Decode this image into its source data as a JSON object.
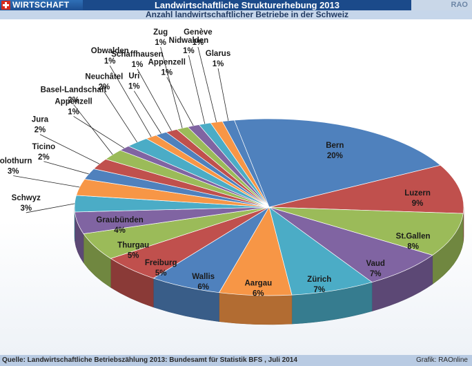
{
  "header": {
    "section": "WIRTSCHAFT",
    "title": "Landwirtschaftliche Strukturerhebung 2013",
    "brand": "RAO",
    "subtitle": "Anzahl landwirtschaftlicher Betriebe in der Schweiz"
  },
  "footer": {
    "source": "Quelle: Landwirtschaftliche Betriebszählung 2013: Bundesamt für Statistik BFS , Juli 2014",
    "credit": "Grafik: RAOnline"
  },
  "chart_data": {
    "type": "pie",
    "title": "Anzahl landwirtschaftlicher Betriebe in der Schweiz",
    "unit": "%",
    "style": "3d-pie",
    "slices": [
      {
        "label": "Bern",
        "value": 20,
        "display": "20%",
        "color": "#4f81bd"
      },
      {
        "label": "Luzern",
        "value": 9,
        "display": "9%",
        "color": "#c0504d"
      },
      {
        "label": "St.Gallen",
        "value": 8,
        "display": "8%",
        "color": "#9bbb59"
      },
      {
        "label": "Vaud",
        "value": 7,
        "display": "7%",
        "color": "#8064a2"
      },
      {
        "label": "Zürich",
        "value": 7,
        "display": "7%",
        "color": "#4bacc6"
      },
      {
        "label": "Aargau",
        "value": 6,
        "display": "6%",
        "color": "#f79646"
      },
      {
        "label": "Wallis",
        "value": 6,
        "display": "6%",
        "color": "#4f81bd"
      },
      {
        "label": "Freiburg",
        "value": 5,
        "display": "5%",
        "color": "#c0504d"
      },
      {
        "label": "Thurgau",
        "value": 5,
        "display": "5%",
        "color": "#9bbb59"
      },
      {
        "label": "Graubünden",
        "value": 4,
        "display": "4%",
        "color": "#8064a2"
      },
      {
        "label": "Schwyz",
        "value": 3,
        "display": "3%",
        "color": "#4bacc6"
      },
      {
        "label": "Solothurn",
        "value": 3,
        "display": "3%",
        "color": "#f79646"
      },
      {
        "label": "Ticino",
        "value": 2,
        "display": "2%",
        "color": "#4f81bd"
      },
      {
        "label": "Jura",
        "value": 2,
        "display": "2%",
        "color": "#c0504d"
      },
      {
        "label": "Basel-Landschaft",
        "value": 2,
        "display": "2%",
        "color": "#9bbb59"
      },
      {
        "label": "Appenzell",
        "value": 1,
        "display": "1%",
        "color": "#8064a2"
      },
      {
        "label": "Neuchâtel",
        "value": 2,
        "display": "2%",
        "color": "#4bacc6"
      },
      {
        "label": "Obwalden",
        "value": 1,
        "display": "1%",
        "color": "#f79646"
      },
      {
        "label": "Uri",
        "value": 1,
        "display": "1%",
        "color": "#4f81bd"
      },
      {
        "label": "Schaffhausen",
        "value": 1,
        "display": "1%",
        "color": "#c0504d"
      },
      {
        "label": "Zug",
        "value": 1,
        "display": "1%",
        "color": "#9bbb59"
      },
      {
        "label": "Appenzell",
        "value": 1,
        "display": "1%",
        "color": "#8064a2"
      },
      {
        "label": "Nidwalden",
        "value": 1,
        "display": "1%",
        "color": "#4bacc6"
      },
      {
        "label": "Genève",
        "value": 1,
        "display": "1%",
        "color": "#f79646"
      },
      {
        "label": "Glarus",
        "value": 1,
        "display": "1%",
        "color": "#4f81bd"
      }
    ]
  }
}
